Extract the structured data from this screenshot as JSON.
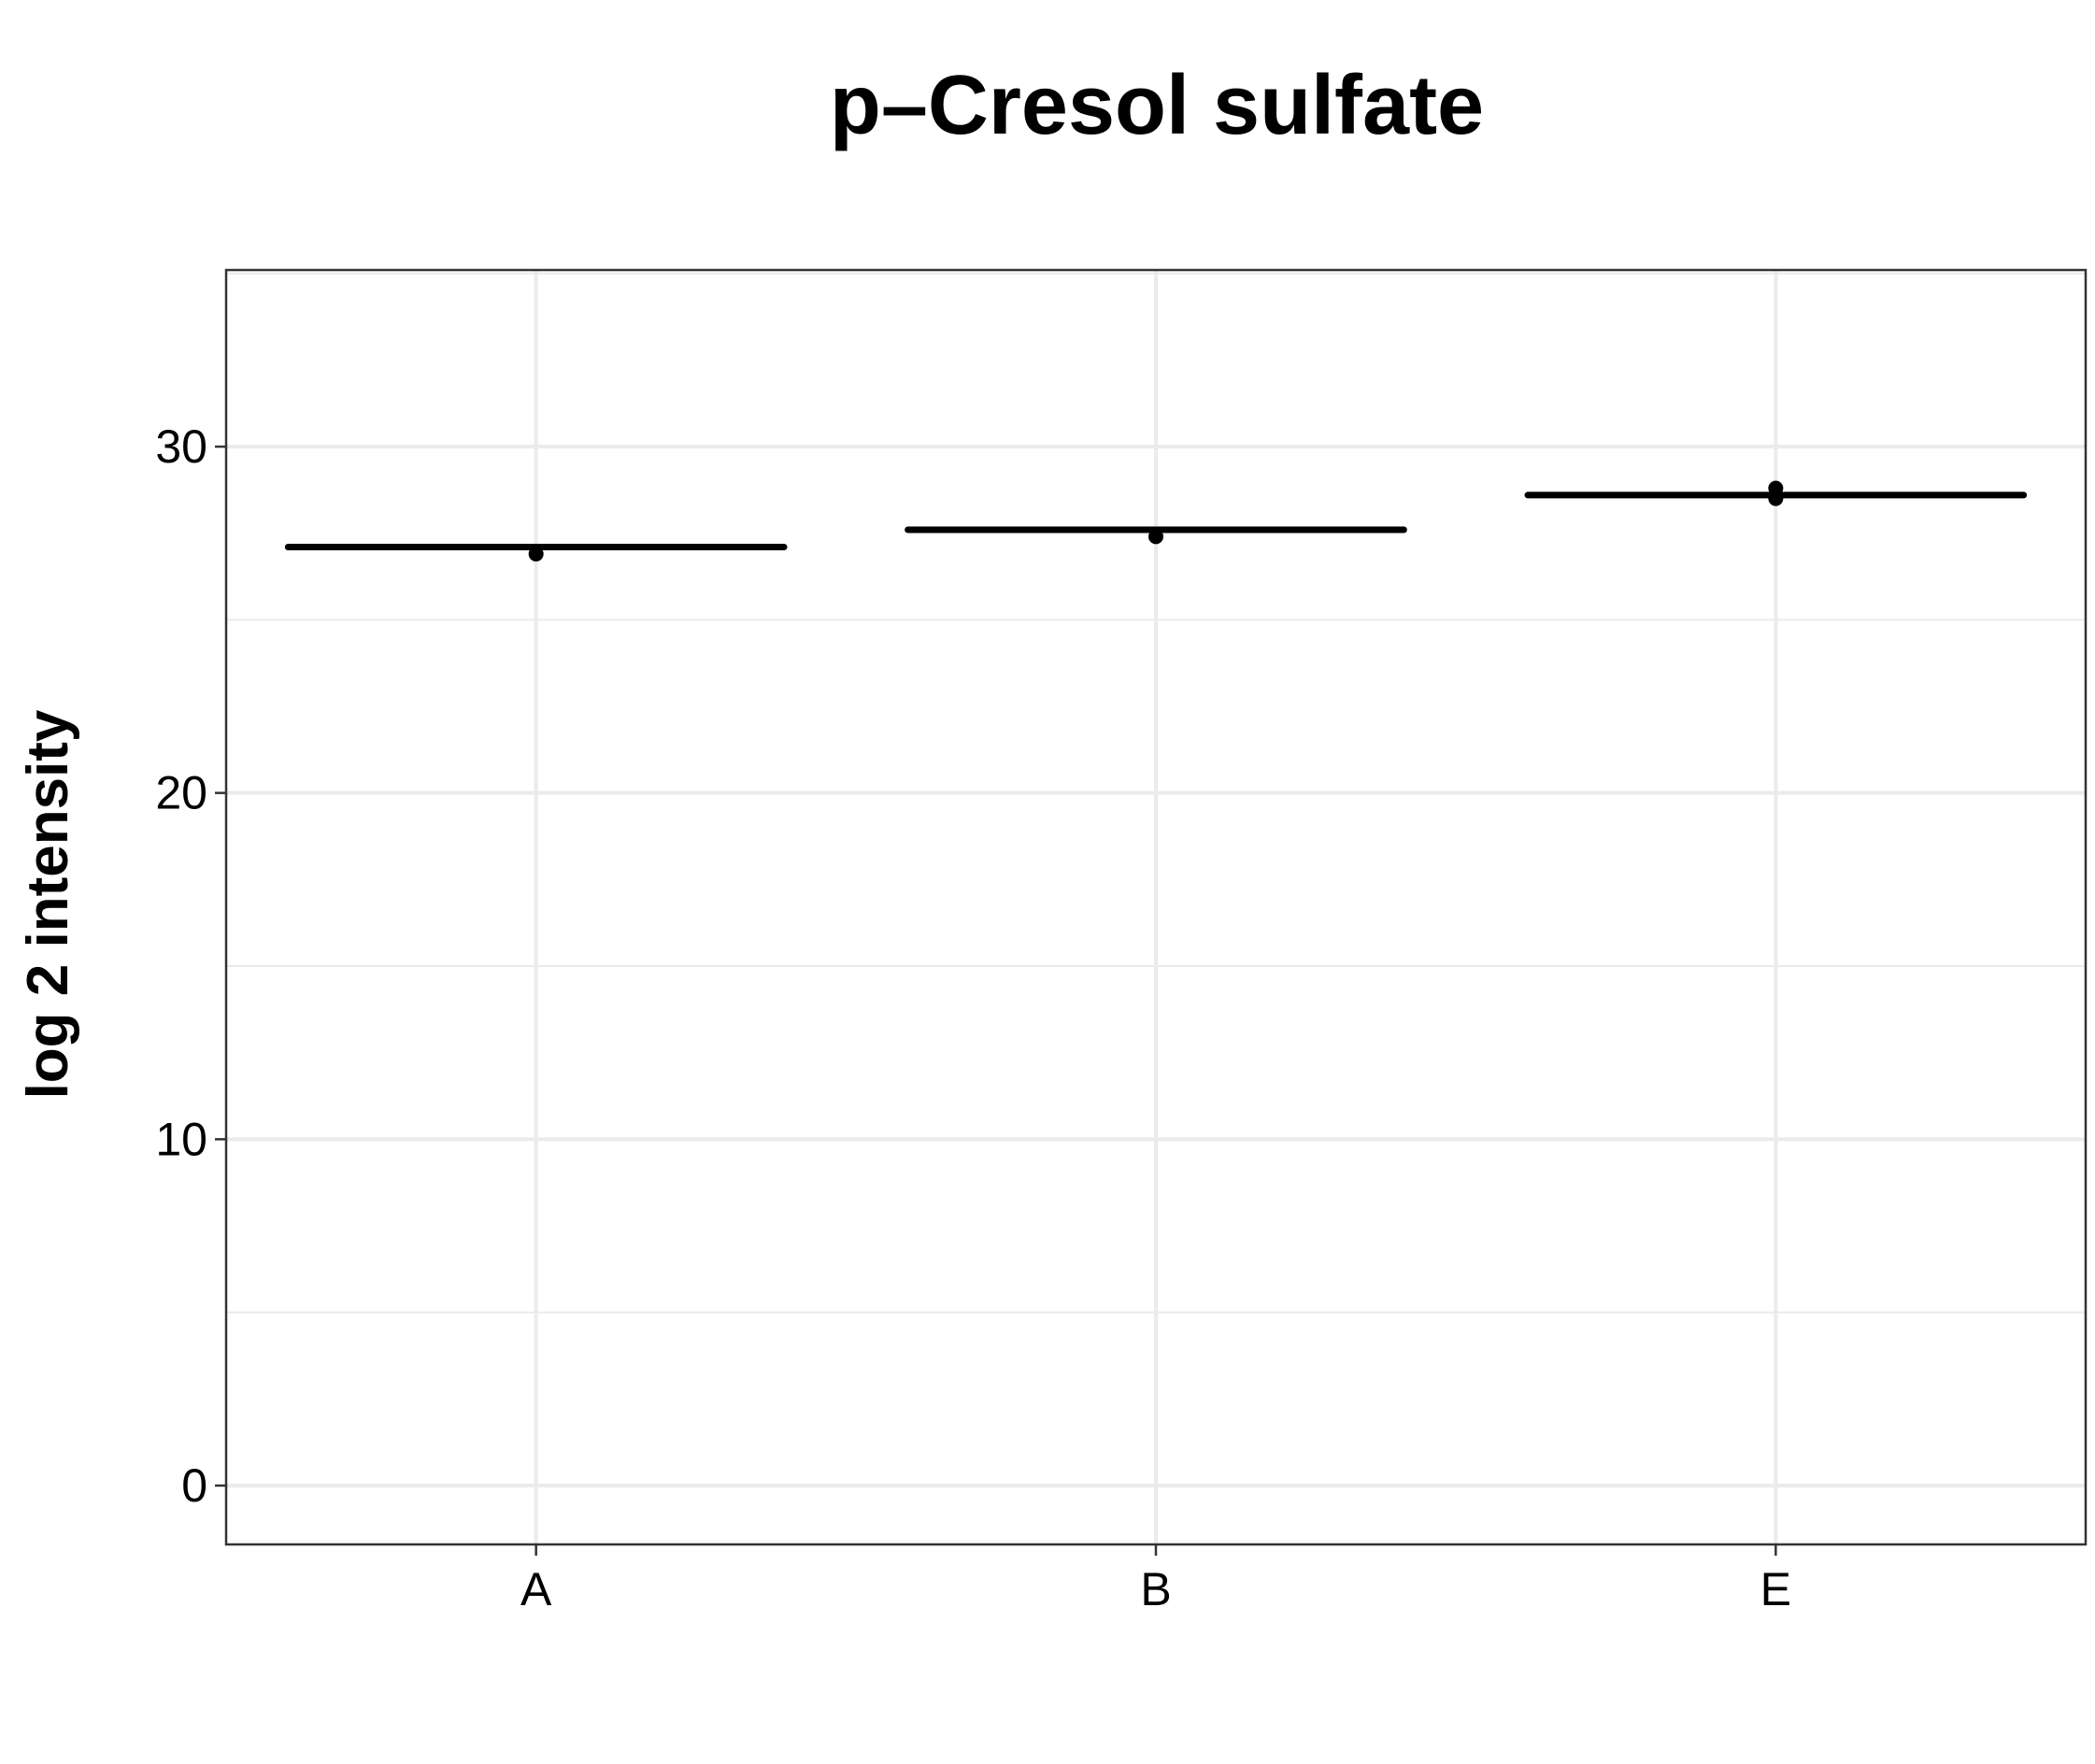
{
  "chart_data": {
    "type": "boxplot",
    "title": "p–Cresol sulfate",
    "xlabel": "",
    "ylabel": "log 2 intensity",
    "categories": [
      "A",
      "B",
      "E"
    ],
    "ylim": [
      -1.7,
      35.1
    ],
    "yticks": [
      0,
      10,
      20,
      30
    ],
    "grid": true,
    "groups": [
      {
        "category": "A",
        "median": 27.1,
        "q1": 27.1,
        "q3": 27.1,
        "whisker_low": 27.1,
        "whisker_high": 27.1,
        "points": [
          26.9
        ]
      },
      {
        "category": "B",
        "median": 27.6,
        "q1": 27.6,
        "q3": 27.6,
        "whisker_low": 27.6,
        "whisker_high": 27.6,
        "points": [
          27.4
        ]
      },
      {
        "category": "E",
        "median": 28.6,
        "q1": 28.6,
        "q3": 28.6,
        "whisker_low": 28.6,
        "whisker_high": 28.6,
        "points": [
          28.5,
          28.8
        ]
      }
    ],
    "colors": {
      "box": "#000000",
      "grid": "#ebebeb",
      "panel_border": "#333333",
      "text": "#000000"
    }
  }
}
